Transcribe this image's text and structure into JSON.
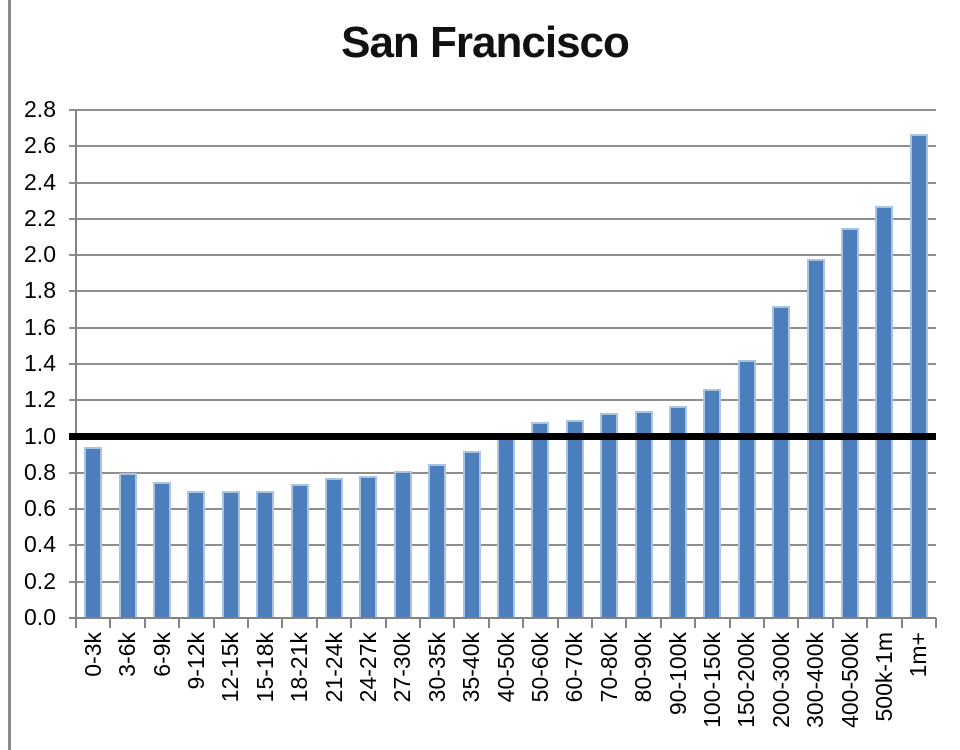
{
  "window": {
    "left_edge_line_color": "#8a8a8a",
    "background": "#ffffff"
  },
  "chart_data": {
    "type": "bar",
    "title": "San Francisco",
    "categories": [
      "0-3k",
      "3-6k",
      "6-9k",
      "9-12k",
      "12-15k",
      "15-18k",
      "18-21k",
      "21-24k",
      "24-27k",
      "27-30k",
      "30-35k",
      "35-40k",
      "40-50k",
      "50-60k",
      "60-70k",
      "70-80k",
      "80-90k",
      "90-100k",
      "100-150k",
      "150-200k",
      "200-300k",
      "300-400k",
      "400-500k",
      "500k-1m",
      "1m+"
    ],
    "values": [
      0.94,
      0.8,
      0.75,
      0.7,
      0.7,
      0.7,
      0.74,
      0.77,
      0.78,
      0.81,
      0.85,
      0.92,
      1.01,
      1.08,
      1.09,
      1.13,
      1.14,
      1.17,
      1.26,
      1.42,
      1.72,
      1.98,
      2.15,
      2.27,
      2.67
    ],
    "xlabel": "",
    "ylabel": "",
    "ylim": [
      0,
      2.8
    ],
    "ytick_step": 0.2,
    "ytick_labels": [
      "0.0",
      "0.2",
      "0.4",
      "0.6",
      "0.8",
      "1.0",
      "1.2",
      "1.4",
      "1.6",
      "1.8",
      "2.0",
      "2.2",
      "2.4",
      "2.6",
      "2.8"
    ],
    "reference_line_y": 1.0,
    "grid": true,
    "legend": false,
    "colors": {
      "bar_fill": "#4c7ebb",
      "bar_edge": "#a9c4e0",
      "gridline": "#8e8e8e",
      "axis": "#848484",
      "reference_line": "#000000",
      "title_text": "#111111",
      "label_text": "#000000"
    }
  }
}
